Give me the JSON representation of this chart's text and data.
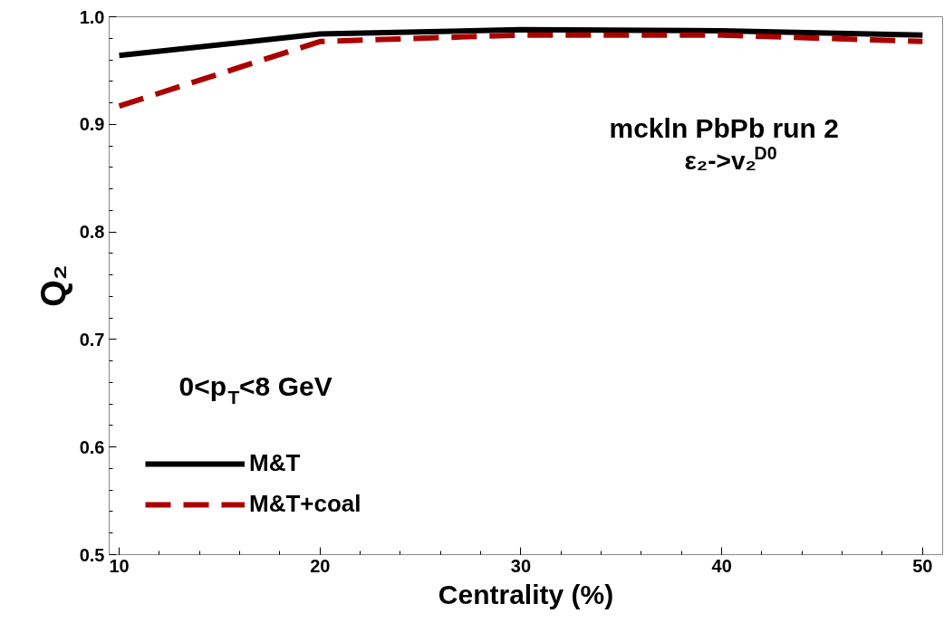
{
  "chart_data": {
    "type": "line",
    "xlabel": "Centrality (%)",
    "ylabel": "Q₂",
    "x": [
      10,
      20,
      30,
      40,
      50
    ],
    "series": [
      {
        "name": "M&T",
        "color": "#000000",
        "values": [
          0.964,
          0.984,
          0.988,
          0.987,
          0.983
        ],
        "line_style": "solid"
      },
      {
        "name": "M&T+coal",
        "color": "#aa0000",
        "values": [
          0.917,
          0.977,
          0.983,
          0.983,
          0.977
        ],
        "line_style": "dashed"
      }
    ],
    "xlim": [
      9.5,
      51
    ],
    "ylim": [
      0.5,
      1.0
    ],
    "xticks": [
      10,
      20,
      30,
      40,
      50
    ],
    "yticks": [
      0.5,
      0.6,
      0.7,
      0.8,
      0.9,
      {
        "value": 1.0,
        "label": "1.0"
      }
    ],
    "grid": false,
    "legend": "bottom left",
    "marker": "none",
    "annotations": [
      "mckln PbPb run 2",
      "ε₂->v₂$^{D0}$",
      "0<p$_{T}$<8 GeV"
    ]
  }
}
